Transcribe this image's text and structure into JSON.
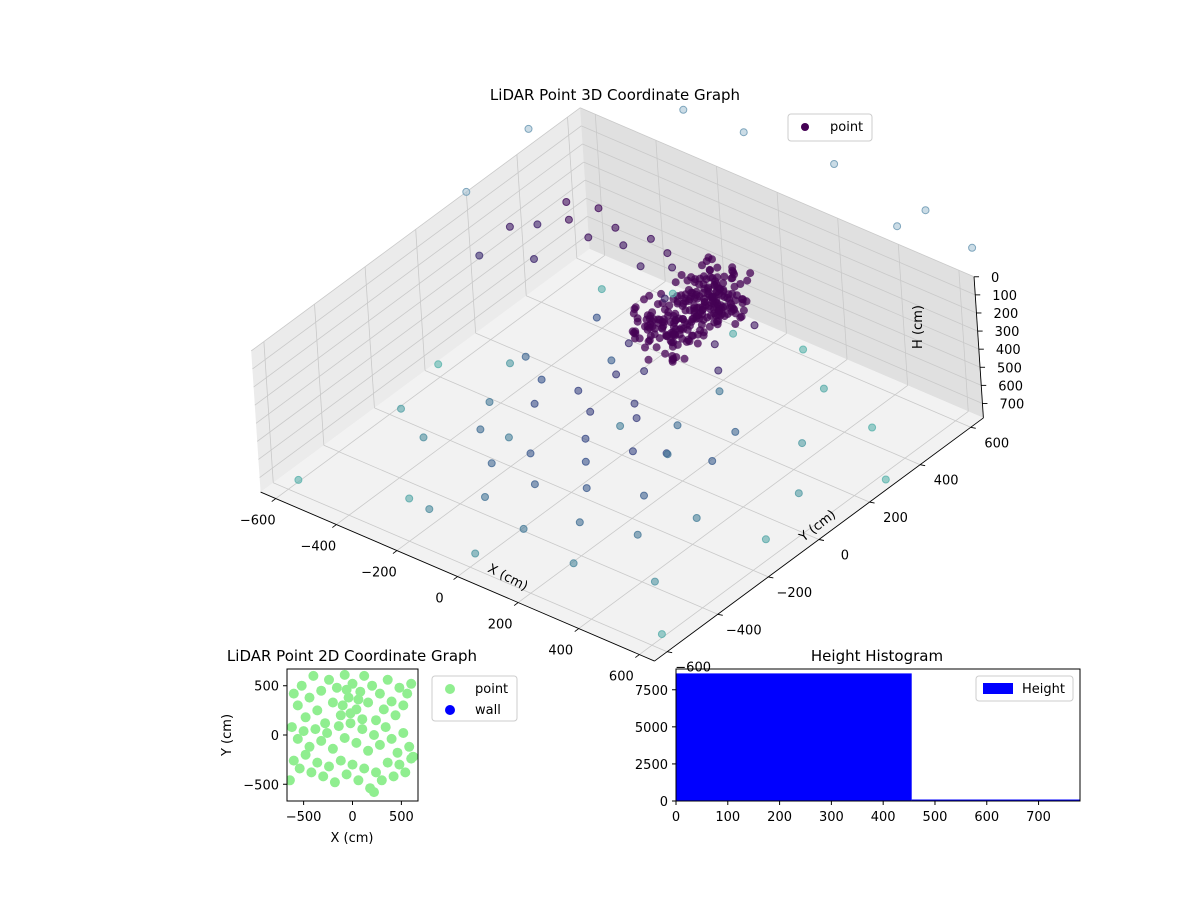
{
  "colors": {
    "point_dark": "#440154",
    "point_mid": "#3b528b",
    "point_light": "#5ab4ac",
    "point_2d": "#90ee90",
    "wall": "#0000ff",
    "hist_bar": "#0000ff",
    "pane_left": "#ebebeb",
    "pane_right": "#e0e0e0",
    "pane_floor": "#f2f2f2",
    "grid": "#c9c9c9"
  },
  "chart_data": [
    {
      "type": "scatter",
      "projection": "3d",
      "title": "LiDAR Point 3D Coordinate Graph",
      "xlabel": "X (cm)",
      "ylabel": "Y (cm)",
      "zlabel": "H (cm)",
      "xlim": [
        -650,
        650
      ],
      "ylim": [
        -650,
        650
      ],
      "zlim": [
        780,
        0
      ],
      "xticks": [
        -600,
        -400,
        -200,
        0,
        200,
        400,
        600
      ],
      "xtick_labels": [
        "−600",
        "−400",
        "−200",
        "0",
        "200",
        "400",
        "600"
      ],
      "yticks": [
        -600,
        -400,
        -200,
        0,
        200,
        400,
        600
      ],
      "ytick_labels": [
        "−600",
        "−400",
        "−200",
        "0",
        "200",
        "400",
        "600"
      ],
      "zticks": [
        0,
        100,
        200,
        300,
        400,
        500,
        600,
        700
      ],
      "ztick_labels": [
        "0",
        "100",
        "200",
        "300",
        "400",
        "500",
        "600",
        "700"
      ],
      "zaxis_inverted": true,
      "grid": true,
      "legend": {
        "position": "top-right",
        "entries": [
          "point"
        ]
      },
      "colormap": "viridis",
      "series": [
        {
          "name": "point",
          "dense_cluster": {
            "x": [
              -40,
              120
            ],
            "y": [
              80,
              420
            ],
            "h": [
              100,
              330
            ],
            "approx_count": 8500
          },
          "points": [
            {
              "x": -520,
              "y": 430,
              "h": 200
            },
            {
              "x": -470,
              "y": 380,
              "h": 210
            },
            {
              "x": -430,
              "y": 450,
              "h": 190
            },
            {
              "x": -390,
              "y": 360,
              "h": 230
            },
            {
              "x": -350,
              "y": 420,
              "h": 210
            },
            {
              "x": -300,
              "y": 390,
              "h": 240
            },
            {
              "x": -250,
              "y": 440,
              "h": 220
            },
            {
              "x": -210,
              "y": 350,
              "h": 250
            },
            {
              "x": -170,
              "y": 410,
              "h": 210
            },
            {
              "x": -130,
              "y": 380,
              "h": 230
            },
            {
              "x": -600,
              "y": 300,
              "h": 260
            },
            {
              "x": -560,
              "y": 360,
              "h": 280
            },
            {
              "x": -480,
              "y": 250,
              "h": 300
            },
            {
              "x": -620,
              "y": 200,
              "h": 330
            },
            {
              "x": -90,
              "y": 300,
              "h": 290
            },
            {
              "x": 160,
              "y": 200,
              "h": 260
            },
            {
              "x": 200,
              "y": 310,
              "h": 240
            },
            {
              "x": 220,
              "y": 140,
              "h": 300
            },
            {
              "x": -60,
              "y": 120,
              "h": 330
            },
            {
              "x": 40,
              "y": 60,
              "h": 350
            },
            {
              "x": -20,
              "y": 20,
              "h": 370
            },
            {
              "x": 90,
              "y": -40,
              "h": 390
            },
            {
              "x": 10,
              "y": -120,
              "h": 410
            },
            {
              "x": 130,
              "y": -80,
              "h": 400
            },
            {
              "x": -80,
              "y": -60,
              "h": 420
            },
            {
              "x": 60,
              "y": -200,
              "h": 440
            },
            {
              "x": -150,
              "y": -150,
              "h": 450
            },
            {
              "x": 200,
              "y": -180,
              "h": 430
            },
            {
              "x": 110,
              "y": -260,
              "h": 470
            },
            {
              "x": -40,
              "y": -300,
              "h": 490
            },
            {
              "x": 260,
              "y": -120,
              "h": 460
            },
            {
              "x": -220,
              "y": -40,
              "h": 480
            },
            {
              "x": 170,
              "y": -330,
              "h": 500
            },
            {
              "x": 40,
              "y": -380,
              "h": 520
            },
            {
              "x": -120,
              "y": -360,
              "h": 540
            },
            {
              "x": 300,
              "y": -260,
              "h": 520
            },
            {
              "x": 220,
              "y": -420,
              "h": 560
            },
            {
              "x": -60,
              "y": -460,
              "h": 580
            },
            {
              "x": 360,
              "y": -360,
              "h": 590
            },
            {
              "x": 100,
              "y": -500,
              "h": 600
            },
            {
              "x": -250,
              "y": -250,
              "h": 560
            },
            {
              "x": -330,
              "y": -120,
              "h": 600
            },
            {
              "x": 420,
              "y": -200,
              "h": 620
            },
            {
              "x": 280,
              "y": -520,
              "h": 640
            },
            {
              "x": -180,
              "y": -540,
              "h": 650
            },
            {
              "x": -400,
              "y": -300,
              "h": 660
            },
            {
              "x": 480,
              "y": -440,
              "h": 680
            },
            {
              "x": 20,
              "y": -600,
              "h": 690
            },
            {
              "x": -450,
              "y": 100,
              "h": 700
            },
            {
              "x": 520,
              "y": 80,
              "h": 700
            },
            {
              "x": -560,
              "y": -200,
              "h": 720
            },
            {
              "x": 380,
              "y": 260,
              "h": 710
            },
            {
              "x": 560,
              "y": -100,
              "h": 740
            },
            {
              "x": -300,
              "y": -480,
              "h": 740
            },
            {
              "x": 600,
              "y": -560,
              "h": 760
            },
            {
              "x": -600,
              "y": -560,
              "h": 770
            },
            {
              "x": 250,
              "y": 500,
              "h": 750
            },
            {
              "x": -100,
              "y": 560,
              "h": 760
            },
            {
              "x": 450,
              "y": 450,
              "h": 770
            },
            {
              "x": -500,
              "y": 520,
              "h": 760
            },
            {
              "x": 620,
              "y": 300,
              "h": 780
            },
            {
              "x": -640,
              "y": 40,
              "h": 780
            },
            {
              "x": 80,
              "y": 620,
              "h": 780
            },
            {
              "x": -350,
              "y": 620,
              "h": 780
            },
            {
              "x": 0,
              "y": 0,
              "h": 620
            },
            {
              "x": 150,
              "y": 50,
              "h": 560
            },
            {
              "x": -150,
              "y": 150,
              "h": 520
            },
            {
              "x": 300,
              "y": 100,
              "h": 540
            },
            {
              "x": -280,
              "y": 250,
              "h": 480
            },
            {
              "x": 350,
              "y": -50,
              "h": 510
            },
            {
              "x": -350,
              "y": 50,
              "h": 540
            },
            {
              "x": 200,
              "y": -50,
              "h": 580
            },
            {
              "x": -200,
              "y": -200,
              "h": 620
            },
            {
              "x": 120,
              "y": 250,
              "h": 600
            }
          ]
        }
      ],
      "outliers_above_floor": [
        {
          "x": -650,
          "y": 650,
          "h": -120
        },
        {
          "x": -500,
          "y": 650,
          "h": -180
        },
        {
          "x": -300,
          "y": 650,
          "h": -240
        },
        {
          "x": -100,
          "y": 650,
          "h": -260
        },
        {
          "x": 200,
          "y": 650,
          "h": -300
        },
        {
          "x": 500,
          "y": 650,
          "h": -260
        },
        {
          "x": -650,
          "y": 450,
          "h": -90
        },
        {
          "x": 650,
          "y": 650,
          "h": -160
        },
        {
          "x": 400,
          "y": 650,
          "h": -100
        },
        {
          "x": -650,
          "y": 200,
          "h": 0
        }
      ]
    },
    {
      "type": "scatter",
      "title": "LiDAR Point 2D Coordinate Graph",
      "xlabel": "X (cm)",
      "ylabel": "Y (cm)",
      "xlim": [
        -670,
        670
      ],
      "ylim": [
        -670,
        670
      ],
      "xticks": [
        -500,
        0,
        500
      ],
      "xtick_labels": [
        "−500",
        "0",
        "500"
      ],
      "yticks": [
        -500,
        0,
        500
      ],
      "ytick_labels": [
        "−500",
        "0",
        "500"
      ],
      "legend": {
        "position": "outside-right",
        "entries": [
          "point",
          "wall"
        ]
      },
      "series": [
        {
          "name": "point",
          "points": [
            {
              "x": -600,
              "y": 420
            },
            {
              "x": -560,
              "y": 300
            },
            {
              "x": -520,
              "y": 500
            },
            {
              "x": -480,
              "y": 180
            },
            {
              "x": -440,
              "y": 380
            },
            {
              "x": -400,
              "y": 600
            },
            {
              "x": -360,
              "y": 250
            },
            {
              "x": -320,
              "y": 450
            },
            {
              "x": -280,
              "y": 120
            },
            {
              "x": -240,
              "y": 560
            },
            {
              "x": -200,
              "y": 330
            },
            {
              "x": -160,
              "y": 480
            },
            {
              "x": -120,
              "y": 200
            },
            {
              "x": -80,
              "y": 610
            },
            {
              "x": -40,
              "y": 380
            },
            {
              "x": 0,
              "y": 520
            },
            {
              "x": 40,
              "y": 260
            },
            {
              "x": 80,
              "y": 440
            },
            {
              "x": 120,
              "y": 600
            },
            {
              "x": 160,
              "y": 330
            },
            {
              "x": 200,
              "y": 500
            },
            {
              "x": 240,
              "y": 150
            },
            {
              "x": 280,
              "y": 420
            },
            {
              "x": 320,
              "y": 260
            },
            {
              "x": 360,
              "y": 560
            },
            {
              "x": 400,
              "y": 340
            },
            {
              "x": 440,
              "y": 200
            },
            {
              "x": 480,
              "y": 480
            },
            {
              "x": 520,
              "y": 300
            },
            {
              "x": 560,
              "y": 420
            },
            {
              "x": 600,
              "y": 520
            },
            {
              "x": -620,
              "y": 80
            },
            {
              "x": -560,
              "y": -40
            },
            {
              "x": -500,
              "y": 40
            },
            {
              "x": -440,
              "y": -120
            },
            {
              "x": -380,
              "y": 60
            },
            {
              "x": -320,
              "y": -60
            },
            {
              "x": -260,
              "y": 20
            },
            {
              "x": -200,
              "y": -140
            },
            {
              "x": -140,
              "y": 90
            },
            {
              "x": -80,
              "y": -30
            },
            {
              "x": -20,
              "y": 120
            },
            {
              "x": 40,
              "y": -80
            },
            {
              "x": 100,
              "y": 60
            },
            {
              "x": 160,
              "y": -160
            },
            {
              "x": 220,
              "y": 0
            },
            {
              "x": 280,
              "y": -100
            },
            {
              "x": 340,
              "y": 80
            },
            {
              "x": 400,
              "y": -40
            },
            {
              "x": 460,
              "y": -180
            },
            {
              "x": 520,
              "y": 20
            },
            {
              "x": 580,
              "y": -120
            },
            {
              "x": 620,
              "y": -220
            },
            {
              "x": -600,
              "y": -260
            },
            {
              "x": -540,
              "y": -340
            },
            {
              "x": -480,
              "y": -200
            },
            {
              "x": -420,
              "y": -380
            },
            {
              "x": -360,
              "y": -280
            },
            {
              "x": -300,
              "y": -420
            },
            {
              "x": -240,
              "y": -320
            },
            {
              "x": -180,
              "y": -480
            },
            {
              "x": -120,
              "y": -260
            },
            {
              "x": -60,
              "y": -400
            },
            {
              "x": 0,
              "y": -300
            },
            {
              "x": 60,
              "y": -460
            },
            {
              "x": 120,
              "y": -340
            },
            {
              "x": 180,
              "y": -540
            },
            {
              "x": 240,
              "y": -380
            },
            {
              "x": 300,
              "y": -460
            },
            {
              "x": 360,
              "y": -280
            },
            {
              "x": 420,
              "y": -420
            },
            {
              "x": 480,
              "y": -300
            },
            {
              "x": 540,
              "y": -380
            },
            {
              "x": 600,
              "y": -240
            },
            {
              "x": -640,
              "y": -460
            },
            {
              "x": 220,
              "y": -580
            },
            {
              "x": -100,
              "y": 300
            },
            {
              "x": 60,
              "y": 360
            },
            {
              "x": -20,
              "y": 220
            },
            {
              "x": 100,
              "y": 160
            },
            {
              "x": -60,
              "y": 460
            }
          ]
        },
        {
          "name": "wall",
          "points": []
        }
      ]
    },
    {
      "type": "bar",
      "title": "Height Histogram",
      "xlabel": "",
      "ylabel": "",
      "xlim": [
        0,
        780
      ],
      "ylim": [
        0,
        8900
      ],
      "xticks": [
        0,
        100,
        200,
        300,
        400,
        500,
        600,
        700
      ],
      "xtick_labels": [
        "0",
        "100",
        "200",
        "300",
        "400",
        "500",
        "600",
        "700"
      ],
      "yticks": [
        0,
        2500,
        5000,
        7500
      ],
      "ytick_labels": [
        "0",
        "2500",
        "5000",
        "7500"
      ],
      "legend": {
        "position": "top-right",
        "entries": [
          "Height"
        ]
      },
      "series": [
        {
          "name": "Height",
          "bins": [
            {
              "from": 0,
              "to": 455,
              "count": 8600
            },
            {
              "from": 455,
              "to": 780,
              "count": 100
            }
          ]
        }
      ]
    }
  ]
}
